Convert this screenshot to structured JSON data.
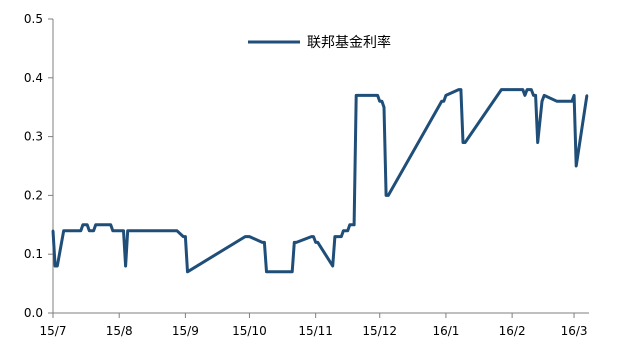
{
  "chart_data": {
    "type": "line",
    "title": "",
    "xlabel": "",
    "ylabel": "",
    "ylim": [
      0,
      0.5
    ],
    "yticks": [
      "0.0",
      "0.1",
      "0.2",
      "0.3",
      "0.4",
      "0.5"
    ],
    "xticks": [
      "15/7",
      "15/8",
      "15/9",
      "15/10",
      "15/11",
      "15/12",
      "16/1",
      "16/2",
      "16/3"
    ],
    "xtick_dates": [
      "2015-07-01",
      "2015-08-01",
      "2015-09-01",
      "2015-10-01",
      "2015-11-01",
      "2015-12-01",
      "2016-01-01",
      "2016-02-01",
      "2016-03-01"
    ],
    "x_range": [
      "2015-07-01",
      "2016-03-08"
    ],
    "grid": false,
    "legend_position": "top-center",
    "series": [
      {
        "name": "联邦基金利率",
        "color": "#1f4e79",
        "x": [
          "2015-07-01",
          "2015-07-02",
          "2015-07-03",
          "2015-07-06",
          "2015-07-07",
          "2015-07-14",
          "2015-07-15",
          "2015-07-17",
          "2015-07-18",
          "2015-07-20",
          "2015-07-21",
          "2015-07-28",
          "2015-07-29",
          "2015-07-31",
          "2015-08-03",
          "2015-08-04",
          "2015-08-05",
          "2015-08-28",
          "2015-08-31",
          "2015-09-01",
          "2015-09-02",
          "2015-09-29",
          "2015-09-30",
          "2015-10-01",
          "2015-10-07",
          "2015-10-08",
          "2015-10-09",
          "2015-10-21",
          "2015-10-22",
          "2015-10-23",
          "2015-10-30",
          "2015-10-31",
          "2015-11-01",
          "2015-11-02",
          "2015-11-09",
          "2015-11-10",
          "2015-11-13",
          "2015-11-14",
          "2015-11-16",
          "2015-11-17",
          "2015-11-19",
          "2015-11-20",
          "2015-11-30",
          "2015-12-01",
          "2015-12-02",
          "2015-12-03",
          "2015-12-04",
          "2015-12-05",
          "2015-12-30",
          "2015-12-31",
          "2016-01-01",
          "2016-01-07",
          "2016-01-08",
          "2016-01-09",
          "2016-01-10",
          "2016-01-27",
          "2016-01-28",
          "2016-01-29",
          "2016-02-06",
          "2016-02-07",
          "2016-02-08",
          "2016-02-09",
          "2016-02-10",
          "2016-02-11",
          "2016-02-12",
          "2016-02-13",
          "2016-02-15",
          "2016-02-16",
          "2016-02-22",
          "2016-02-23",
          "2016-02-29",
          "2016-03-01",
          "2016-03-02",
          "2016-03-07"
        ],
        "values": [
          0.14,
          0.08,
          0.08,
          0.14,
          0.14,
          0.14,
          0.15,
          0.15,
          0.14,
          0.14,
          0.15,
          0.15,
          0.14,
          0.14,
          0.14,
          0.08,
          0.14,
          0.14,
          0.13,
          0.13,
          0.07,
          0.13,
          0.13,
          0.13,
          0.12,
          0.12,
          0.07,
          0.07,
          0.12,
          0.12,
          0.13,
          0.13,
          0.12,
          0.12,
          0.08,
          0.13,
          0.13,
          0.14,
          0.14,
          0.15,
          0.15,
          0.37,
          0.37,
          0.36,
          0.36,
          0.35,
          0.2,
          0.2,
          0.36,
          0.36,
          0.37,
          0.38,
          0.38,
          0.29,
          0.29,
          0.38,
          0.38,
          0.38,
          0.38,
          0.37,
          0.38,
          0.38,
          0.38,
          0.37,
          0.37,
          0.29,
          0.36,
          0.37,
          0.36,
          0.36,
          0.36,
          0.37,
          0.25,
          0.37
        ]
      }
    ]
  }
}
